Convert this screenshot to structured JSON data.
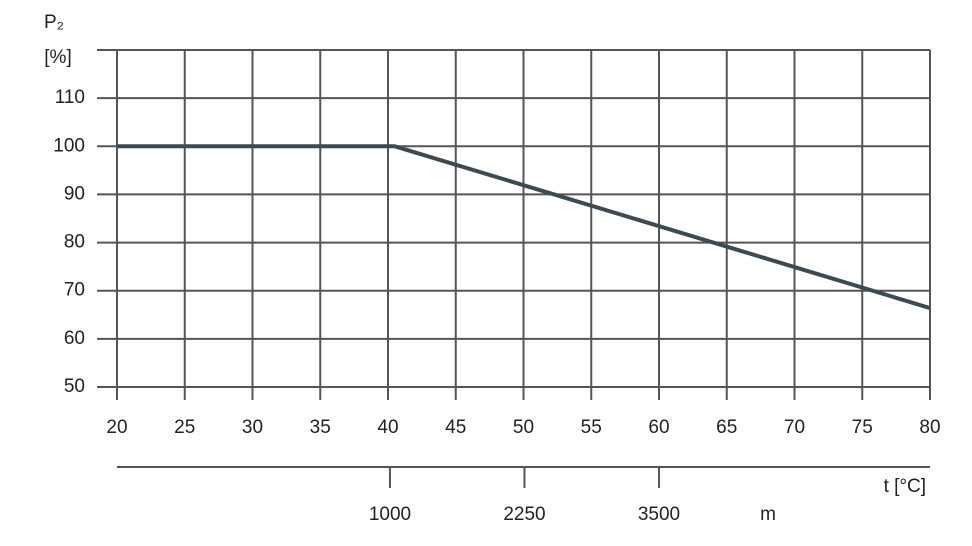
{
  "chart_data": {
    "type": "line",
    "y_label": [
      "P₂",
      "[%]"
    ],
    "x_label": "t [°C]",
    "x2_label": "m",
    "x": [
      20,
      40.5,
      80
    ],
    "series": [
      {
        "color": "#3d4a52",
        "values": [
          100,
          100,
          66.4
        ]
      }
    ],
    "xlim": [
      20,
      80
    ],
    "xticks": [
      20,
      25,
      30,
      35,
      40,
      45,
      50,
      55,
      60,
      65,
      70,
      75,
      80
    ],
    "ylim": [
      50,
      120
    ],
    "yticks": [
      50,
      60,
      70,
      80,
      90,
      100,
      110
    ],
    "x2lim": [
      -1537,
      6019
    ],
    "x2ticks": [
      1000,
      2250,
      3500
    ],
    "grid": true
  }
}
